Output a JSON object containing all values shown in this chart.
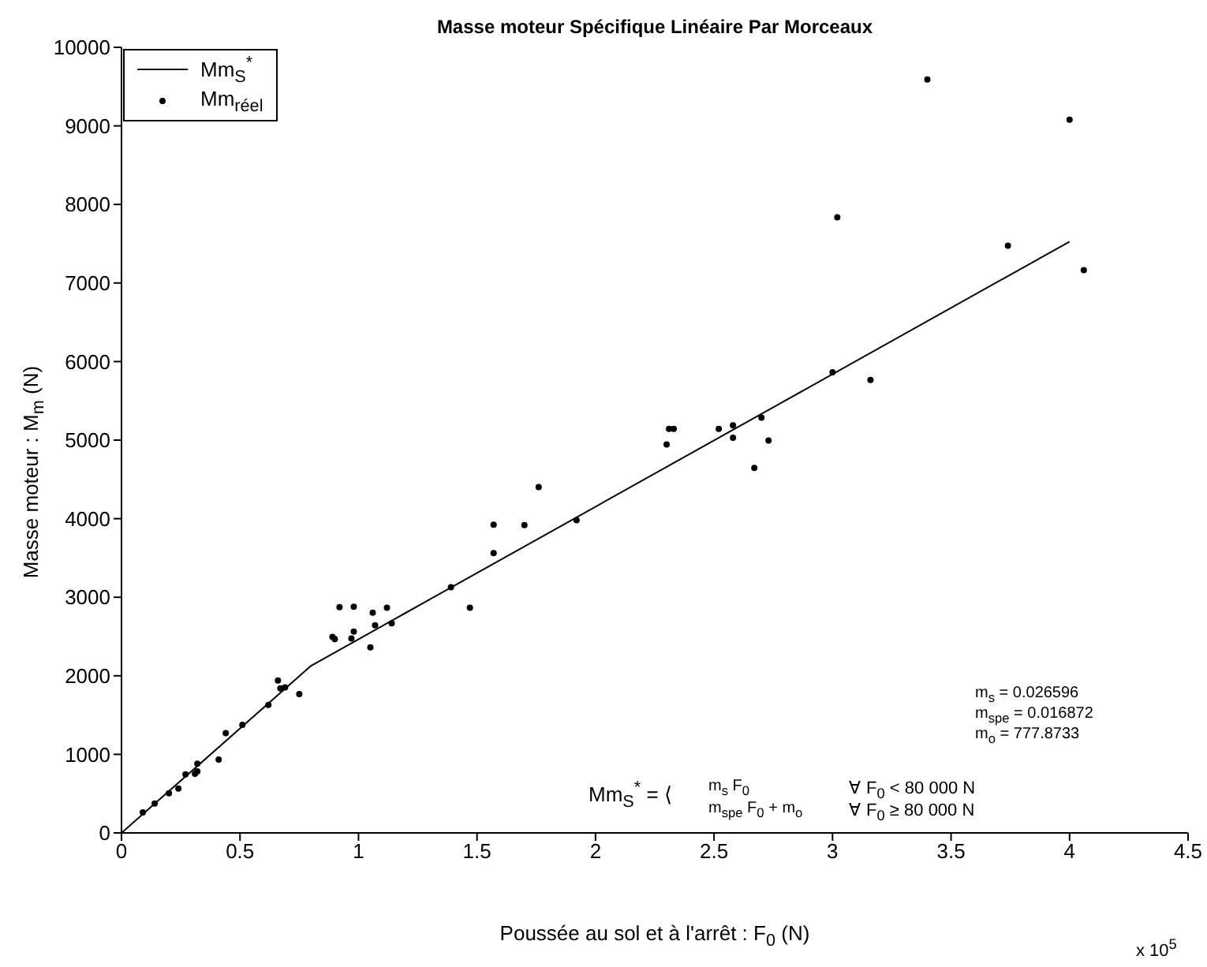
{
  "chart_data": {
    "type": "scatter",
    "title": "Masse moteur Spécifique Linéaire Par Morceaux",
    "xlabel": "Poussée au sol et à l'arrêt : F$_{0}$ (N)",
    "ylabel": "Masse moteur : M$_{m}$ (N)",
    "xlim": [
      0,
      4.5
    ],
    "xticks": [
      0,
      0.5,
      1,
      1.5,
      2,
      2.5,
      3,
      3.5,
      4,
      4.5
    ],
    "ylim": [
      0,
      10000
    ],
    "yticks": [
      0,
      1000,
      2000,
      3000,
      4000,
      5000,
      6000,
      7000,
      8000,
      9000,
      10000
    ],
    "grid": false,
    "legend": "top left",
    "series": [
      {
        "name": "Mm$_{S}$$^{*}$",
        "type": "line",
        "color": "#000000",
        "marker": "none",
        "line_style": "solid",
        "x": [
          0,
          0.8,
          4.0
        ],
        "values": [
          0,
          2128,
          7527
        ]
      },
      {
        "name": "Mm$_{réel}$",
        "type": "scatter",
        "color": "#000000",
        "marker": "circle",
        "x": [
          0.09,
          0.14,
          0.2,
          0.24,
          0.27,
          0.32,
          0.31,
          0.32,
          0.41,
          0.44,
          0.51,
          0.62,
          0.66,
          0.67,
          0.69,
          0.75,
          0.89,
          0.9,
          0.92,
          0.98,
          0.97,
          0.98,
          1.05,
          1.06,
          1.07,
          1.12,
          1.14,
          1.39,
          1.47,
          1.57,
          1.57,
          1.7,
          1.76,
          1.92,
          2.3,
          2.31,
          2.33,
          2.52,
          2.58,
          2.58,
          2.67,
          2.7,
          2.73,
          3.0,
          3.16,
          3.02,
          3.4,
          3.74,
          4.0,
          4.06
        ],
        "values": [
          261,
          373,
          504,
          565,
          746,
          784,
          752,
          882,
          933,
          1269,
          1375,
          1629,
          1940,
          1841,
          1853,
          1767,
          2494,
          2468,
          2873,
          2879,
          2476,
          2562,
          2363,
          2804,
          2643,
          2867,
          2668,
          3128,
          2867,
          3563,
          3924,
          3918,
          4403,
          3980,
          4944,
          5143,
          5143,
          5143,
          5187,
          5031,
          4646,
          5286,
          4994,
          5864,
          5765,
          7836,
          9590,
          7476,
          9080,
          7164
        ]
      }
    ],
    "annotations": [
      "x 10$^{5}$",
      "m$_{s}$ = 0.026596",
      "m$_{spe}$ = 0.016872",
      "m$_{o}$ = 777.8733",
      "Mm$_{S}$$^{*}$ = ⟨",
      "m$_{s}$ F$_{0}$",
      "∀  F$_{0}$ < 80 000 N",
      "m$_{spe}$ F$_{0}$ + m$_{o}$",
      "∀  F$_{0}$ ≥ 80 000 N"
    ]
  }
}
